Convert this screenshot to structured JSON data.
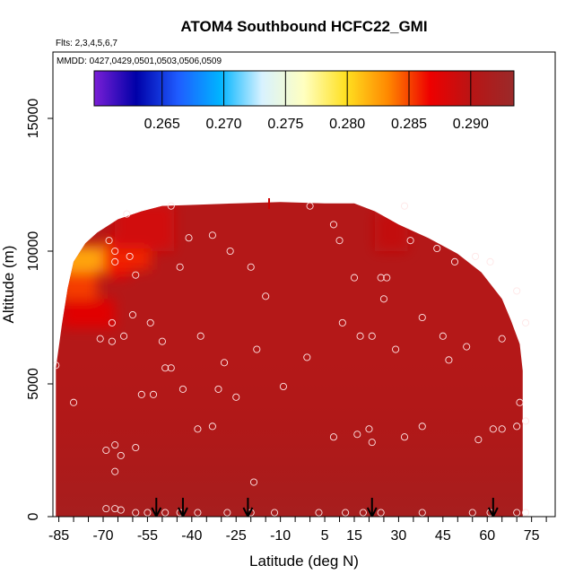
{
  "chart_data": {
    "type": "heatmap",
    "title": "ATOM4 Southbound HCFC22_GMI",
    "subtitle_flights": "Flts: 2,3,4,5,6,7",
    "subtitle_dates": "MMDD: 0427,0429,0501,0503,0506,0509",
    "xlabel": "Latitude (deg N)",
    "ylabel": "Altitude (m)",
    "xlim": [
      -87,
      83
    ],
    "ylim": [
      0,
      17500
    ],
    "x_ticks": [
      -85,
      -70,
      -55,
      -40,
      -25,
      -10,
      5,
      15,
      30,
      45,
      60,
      75
    ],
    "x_tick_labels": [
      "-85",
      "-70",
      "-55",
      "-40",
      "-25",
      "-10",
      "5",
      "15",
      "30",
      "45",
      "60",
      "75"
    ],
    "x_minor_ticks": [
      -80,
      -75,
      -65,
      -60,
      -50,
      -45,
      -35,
      -30,
      -20,
      -15,
      -5,
      0,
      10,
      20,
      25,
      35,
      40,
      50,
      55,
      65,
      70,
      80
    ],
    "y_ticks": [
      0,
      5000,
      10000,
      15000
    ],
    "y_tick_labels": [
      "0",
      "5000",
      "10000",
      "15000"
    ],
    "colorbar": {
      "ticks": [
        0.265,
        0.27,
        0.275,
        0.28,
        0.285,
        0.29
      ],
      "tick_labels": [
        "0.265",
        "0.270",
        "0.275",
        "0.280",
        "0.285",
        "0.290"
      ],
      "range": [
        0.2595,
        0.2935
      ],
      "colors": [
        "#7a1fd6",
        "#0000a8",
        "#1f5cff",
        "#00b4ff",
        "#d8f2ff",
        "#ffffc0",
        "#ffe020",
        "#ff8800",
        "#ee0000",
        "#b81515",
        "#9a2a2a"
      ]
    },
    "domain_edge": {
      "latitude": [
        -86,
        -84,
        -82,
        -80,
        -76,
        -72,
        -65,
        -57,
        -50,
        -38,
        -25,
        -10,
        5,
        15,
        22,
        30,
        40,
        50,
        58,
        65,
        68,
        71,
        72
      ],
      "altitude_top": [
        5600,
        7200,
        8600,
        9600,
        10300,
        10700,
        11200,
        11500,
        11700,
        11750,
        11800,
        11850,
        11800,
        11800,
        11500,
        11000,
        10500,
        9900,
        9200,
        8200,
        7400,
        6500,
        5500
      ]
    },
    "field_patches": [
      {
        "latitude": [
          -84,
          -69
        ],
        "altitude": [
          9200,
          10200
        ],
        "value": 0.2822
      },
      {
        "latitude": [
          -85,
          -72
        ],
        "altitude": [
          8200,
          9200
        ],
        "value": 0.2852
      },
      {
        "latitude": [
          -84,
          -66
        ],
        "altitude": [
          7100,
          8200
        ],
        "value": 0.2875
      },
      {
        "latitude": [
          -69,
          -61
        ],
        "altitude": [
          9000,
          10500
        ],
        "value": 0.2868
      },
      {
        "latitude": [
          -66,
          -46
        ],
        "altitude": [
          10000,
          11800
        ],
        "value": 0.2885
      },
      {
        "latitude": [
          -70,
          -54
        ],
        "altitude": [
          9300,
          10100
        ],
        "value": 0.2858
      },
      {
        "latitude": [
          22,
          33
        ],
        "altitude": [
          10000,
          11500
        ],
        "value": 0.2895
      }
    ],
    "observations": [
      {
        "latitude": -86,
        "altitude": 5700
      },
      {
        "latitude": -80,
        "altitude": 4300
      },
      {
        "latitude": -71,
        "altitude": 6700
      },
      {
        "latitude": -67,
        "altitude": 6600
      },
      {
        "latitude": -67,
        "altitude": 7300
      },
      {
        "latitude": -63,
        "altitude": 6800
      },
      {
        "latitude": -66,
        "altitude": 10000
      },
      {
        "latitude": -66,
        "altitude": 9600
      },
      {
        "latitude": -68,
        "altitude": 10400
      },
      {
        "latitude": -62,
        "altitude": 11400
      },
      {
        "latitude": -61,
        "altitude": 9800
      },
      {
        "latitude": -59,
        "altitude": 9100
      },
      {
        "latitude": -60,
        "altitude": 7600
      },
      {
        "latitude": -54,
        "altitude": 7300
      },
      {
        "latitude": -57,
        "altitude": 4600
      },
      {
        "latitude": -53,
        "altitude": 4600
      },
      {
        "latitude": -50,
        "altitude": 6600
      },
      {
        "latitude": -47,
        "altitude": 11700
      },
      {
        "latitude": -47,
        "altitude": 5600
      },
      {
        "latitude": -49,
        "altitude": 5600
      },
      {
        "latitude": -44,
        "altitude": 9400
      },
      {
        "latitude": -43,
        "altitude": 4800
      },
      {
        "latitude": -41,
        "altitude": 10500
      },
      {
        "latitude": -37,
        "altitude": 6800
      },
      {
        "latitude": -33,
        "altitude": 10600
      },
      {
        "latitude": -31,
        "altitude": 4800
      },
      {
        "latitude": -29,
        "altitude": 5800
      },
      {
        "latitude": -27,
        "altitude": 10000
      },
      {
        "latitude": -25,
        "altitude": 4500
      },
      {
        "latitude": -20,
        "altitude": 9400
      },
      {
        "latitude": -18,
        "altitude": 6300
      },
      {
        "latitude": -15,
        "altitude": 8300
      },
      {
        "latitude": -9,
        "altitude": 4900
      },
      {
        "latitude": -1,
        "altitude": 6000
      },
      {
        "latitude": 0,
        "altitude": 11700
      },
      {
        "latitude": 8,
        "altitude": 11000
      },
      {
        "latitude": 10,
        "altitude": 10400
      },
      {
        "latitude": 11,
        "altitude": 7300
      },
      {
        "latitude": 15,
        "altitude": 9000
      },
      {
        "latitude": 17,
        "altitude": 6800
      },
      {
        "latitude": 21,
        "altitude": 6800
      },
      {
        "latitude": 24,
        "altitude": 9000
      },
      {
        "latitude": 26,
        "altitude": 9000
      },
      {
        "latitude": 25,
        "altitude": 8200
      },
      {
        "latitude": 29,
        "altitude": 6300
      },
      {
        "latitude": 32,
        "altitude": 11700
      },
      {
        "latitude": 34,
        "altitude": 10400
      },
      {
        "latitude": 38,
        "altitude": 7500
      },
      {
        "latitude": 43,
        "altitude": 10100
      },
      {
        "latitude": 45,
        "altitude": 6800
      },
      {
        "latitude": 47,
        "altitude": 5900
      },
      {
        "latitude": 49,
        "altitude": 9600
      },
      {
        "latitude": 53,
        "altitude": 6400
      },
      {
        "latitude": 56,
        "altitude": 9800
      },
      {
        "latitude": 61,
        "altitude": 9600
      },
      {
        "latitude": 65,
        "altitude": 6700
      },
      {
        "latitude": 70,
        "altitude": 8500
      },
      {
        "latitude": 73,
        "altitude": 7300
      },
      {
        "latitude": 71,
        "altitude": 4300
      },
      {
        "latitude": 70,
        "altitude": 3400
      },
      {
        "latitude": 73,
        "altitude": 3600
      },
      {
        "latitude": -33,
        "altitude": 3400
      },
      {
        "latitude": -38,
        "altitude": 3300
      },
      {
        "latitude": 8,
        "altitude": 3000
      },
      {
        "latitude": 16,
        "altitude": 3100
      },
      {
        "latitude": 20,
        "altitude": 3300
      },
      {
        "latitude": 21,
        "altitude": 2800
      },
      {
        "latitude": 32,
        "altitude": 3000
      },
      {
        "latitude": 38,
        "altitude": 3400
      },
      {
        "latitude": 57,
        "altitude": 2900
      },
      {
        "latitude": 62,
        "altitude": 3300
      },
      {
        "latitude": 65,
        "altitude": 3300
      },
      {
        "latitude": -69,
        "altitude": 2500
      },
      {
        "latitude": -66,
        "altitude": 2700
      },
      {
        "latitude": -64,
        "altitude": 2300
      },
      {
        "latitude": -59,
        "altitude": 2600
      },
      {
        "latitude": -66,
        "altitude": 1700
      },
      {
        "latitude": -19,
        "altitude": 1300
      },
      {
        "latitude": -69,
        "altitude": 300
      },
      {
        "latitude": -66,
        "altitude": 300
      },
      {
        "latitude": -64,
        "altitude": 250
      },
      {
        "latitude": -59,
        "altitude": 150
      },
      {
        "latitude": -55,
        "altitude": 150
      },
      {
        "latitude": -49,
        "altitude": 150
      },
      {
        "latitude": -44,
        "altitude": 150
      },
      {
        "latitude": -38,
        "altitude": 150
      },
      {
        "latitude": -28,
        "altitude": 150
      },
      {
        "latitude": -20,
        "altitude": 150
      },
      {
        "latitude": -12,
        "altitude": 150
      },
      {
        "latitude": 3,
        "altitude": 150
      },
      {
        "latitude": 12,
        "altitude": 150
      },
      {
        "latitude": 18,
        "altitude": 150
      },
      {
        "latitude": 24,
        "altitude": 150
      },
      {
        "latitude": 38,
        "altitude": 150
      },
      {
        "latitude": 55,
        "altitude": 150
      },
      {
        "latitude": 61,
        "altitude": 150
      },
      {
        "latitude": 70,
        "altitude": 150
      },
      {
        "latitude": 73,
        "altitude": 150
      }
    ],
    "arrows_latitude": [
      -52,
      -43,
      -21,
      21,
      62
    ],
    "grid": false
  }
}
